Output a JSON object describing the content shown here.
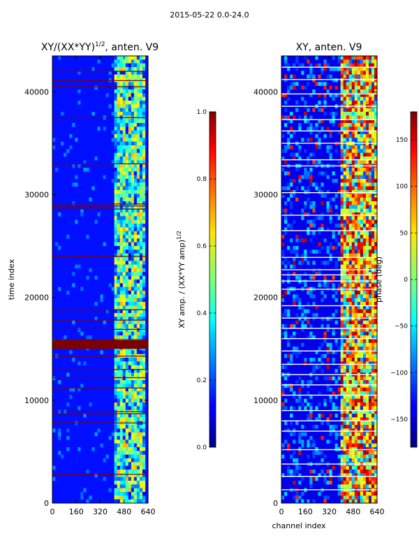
{
  "suptitle": "2015-05-22 0.0-24.0",
  "chart_data": [
    {
      "type": "heatmap",
      "title": "XY/(XX*YY)^1/2, anten. V9",
      "title_main": "XY/(XX*YY)",
      "title_sup": "1/2",
      "title_tail": ", anten. V9",
      "xlabel": "",
      "ylabel": "time index",
      "xlim": [
        0,
        640
      ],
      "ylim": [
        0,
        43500
      ],
      "xticks": [
        0,
        160,
        320,
        480,
        640
      ],
      "yticks": [
        0,
        10000,
        20000,
        30000,
        40000
      ],
      "colormap": "jet",
      "colorbar": {
        "label_main": "XY amp. / (XX*YY amp)",
        "label_sup": "1/2",
        "range": [
          0.0,
          1.0
        ],
        "ticks": [
          "0.0",
          "0.2",
          "0.4",
          "0.6",
          "0.8",
          "1.0"
        ],
        "tick_values": [
          0.0,
          0.2,
          0.4,
          0.6,
          0.8,
          1.0
        ]
      },
      "background_value": 0.12,
      "bright_channel_band": [
        415,
        620
      ],
      "flagged_rows": [
        2800,
        7800,
        8700,
        8900,
        11200,
        12200,
        13000,
        14300,
        15100,
        15400,
        15600,
        15800,
        15900,
        16900,
        17800,
        18800,
        24000,
        28600,
        28900,
        29100,
        33000,
        37500,
        40500,
        41100,
        42000
      ],
      "flagged_block": [
        15000,
        15800
      ]
    },
    {
      "type": "heatmap",
      "title": "XY, anten. V9",
      "xlabel": "channel index",
      "ylabel": "",
      "xlim": [
        0,
        640
      ],
      "ylim": [
        0,
        43500
      ],
      "xticks": [
        0,
        160,
        320,
        480,
        640
      ],
      "yticks": [
        0,
        10000,
        20000,
        30000,
        40000
      ],
      "colormap": "jet",
      "colorbar": {
        "label": "phase (deg)",
        "range": [
          -180,
          180
        ],
        "ticks": [
          "150",
          "100",
          "50",
          "0",
          "−50",
          "−100",
          "−150"
        ],
        "tick_values": [
          150,
          100,
          50,
          0,
          -50,
          -100,
          -150
        ]
      },
      "background_value": -150,
      "bright_channel_band": [
        400,
        640
      ],
      "white_rows": [
        1300,
        2600,
        3800,
        5200,
        7000,
        8000,
        9000,
        10500,
        11500,
        12500,
        13500,
        14800,
        16000,
        17000,
        18000,
        19200,
        20800,
        21600,
        22200,
        22700,
        23900,
        26500,
        28000,
        30200,
        32800,
        33400,
        35000,
        36200,
        37300,
        38600,
        39800,
        41200,
        42400
      ]
    }
  ]
}
